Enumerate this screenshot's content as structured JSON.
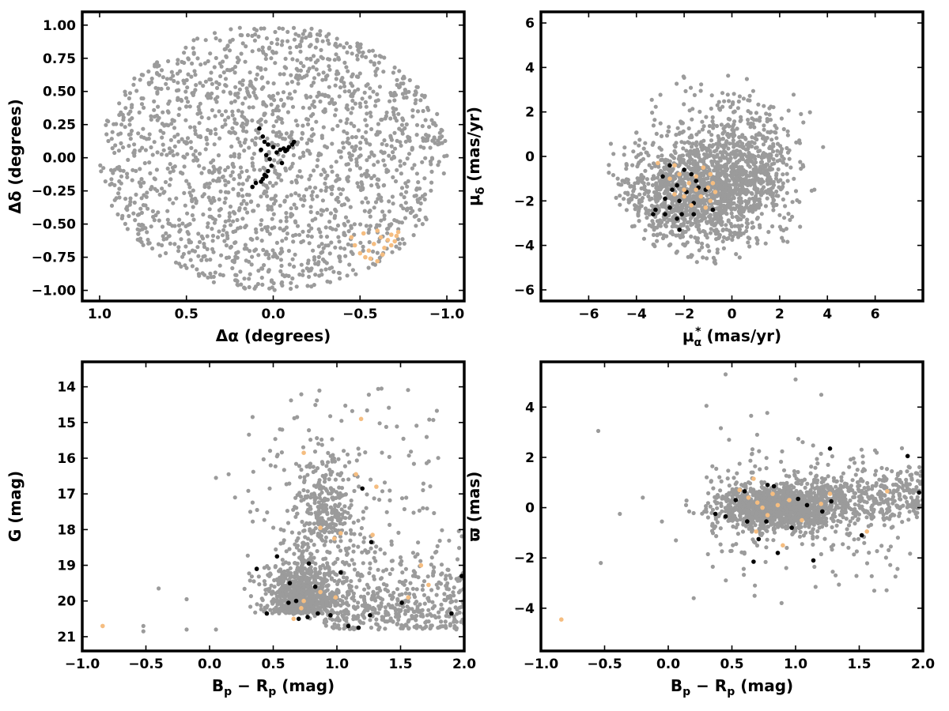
{
  "colors": {
    "field_stars": "#9b9b9b",
    "group_black": "#000000",
    "group_orange": "#f5bd80",
    "frame": "#000000"
  },
  "chart_data": [
    {
      "type": "scatter",
      "id": "sky",
      "xlabel": "Δα (degrees)",
      "ylabel": "Δδ (degrees)",
      "xlim": [
        1.1,
        -1.1
      ],
      "ylim": [
        -1.08,
        1.1
      ],
      "x_inverted": true,
      "xticks": [
        1.0,
        0.5,
        0.0,
        -0.5,
        -1.0
      ],
      "xtick_labels": [
        "1.0",
        "0.5",
        "0.0",
        "−0.5",
        "−1.0"
      ],
      "yticks": [
        -1.0,
        -0.75,
        -0.5,
        -0.25,
        0.0,
        0.25,
        0.5,
        0.75,
        1.0
      ],
      "ytick_labels": [
        "−1.00",
        "−0.75",
        "−0.50",
        "−0.25",
        "0.00",
        "0.25",
        "0.50",
        "0.75",
        "1.00"
      ],
      "grid": false,
      "field": {
        "shape": "disc",
        "center": [
          0.0,
          0.0
        ],
        "radius": 1.0,
        "count": 1800
      },
      "series": [
        {
          "color_key": "group_black",
          "points": [
            [
              0.08,
              0.22
            ],
            [
              0.06,
              0.16
            ],
            [
              0.05,
              0.12
            ],
            [
              0.03,
              0.1
            ],
            [
              0.07,
              0.06
            ],
            [
              0.04,
              0.02
            ],
            [
              0.02,
              -0.01
            ],
            [
              0.01,
              -0.06
            ],
            [
              0.03,
              -0.1
            ],
            [
              0.05,
              -0.13
            ],
            [
              0.06,
              -0.16
            ],
            [
              0.07,
              -0.18
            ],
            [
              0.1,
              -0.19
            ],
            [
              0.12,
              -0.22
            ],
            [
              -0.02,
              0.04
            ],
            [
              -0.04,
              0.06
            ],
            [
              -0.06,
              0.07
            ],
            [
              -0.07,
              0.05
            ],
            [
              -0.09,
              0.08
            ],
            [
              -0.11,
              0.1
            ],
            [
              -0.12,
              0.12
            ],
            [
              -0.05,
              -0.04
            ],
            [
              0.0,
              0.08
            ],
            [
              -0.08,
              0.06
            ],
            [
              0.04,
              -0.14
            ]
          ]
        },
        {
          "color_key": "group_orange",
          "points": [
            [
              -0.45,
              -0.6
            ],
            [
              -0.47,
              -0.66
            ],
            [
              -0.5,
              -0.72
            ],
            [
              -0.53,
              -0.75
            ],
            [
              -0.55,
              -0.7
            ],
            [
              -0.58,
              -0.65
            ],
            [
              -0.6,
              -0.55
            ],
            [
              -0.62,
              -0.6
            ],
            [
              -0.64,
              -0.68
            ],
            [
              -0.66,
              -0.62
            ],
            [
              -0.68,
              -0.58
            ],
            [
              -0.7,
              -0.63
            ],
            [
              -0.72,
              -0.56
            ],
            [
              -0.6,
              -0.78
            ],
            [
              -0.56,
              -0.76
            ],
            [
              -0.63,
              -0.73
            ],
            [
              -0.68,
              -0.66
            ],
            [
              -0.71,
              -0.59
            ],
            [
              -0.52,
              -0.57
            ]
          ]
        }
      ]
    },
    {
      "type": "scatter",
      "id": "proper-motion",
      "xlabel": "μα* (mas/yr)",
      "ylabel": "μδ (mas/yr)",
      "xlim": [
        -8.0,
        8.0
      ],
      "ylim": [
        -6.5,
        6.5
      ],
      "xticks": [
        -6,
        -4,
        -2,
        0,
        2,
        4,
        6
      ],
      "xtick_labels": [
        "−6",
        "−4",
        "−2",
        "0",
        "2",
        "4",
        "6"
      ],
      "yticks": [
        -6,
        -4,
        -2,
        0,
        2,
        4,
        6
      ],
      "ytick_labels": [
        "−6",
        "−4",
        "−2",
        "0",
        "2",
        "4",
        "6"
      ],
      "grid": false,
      "field": {
        "shape": "cloud",
        "main_center": [
          -1.5,
          -1.8
        ],
        "main_spread": [
          1.6,
          1.2
        ],
        "secondary_center": [
          0.4,
          -0.6
        ],
        "secondary_spread": [
          1.2,
          1.3
        ],
        "count": 1800
      },
      "series": [
        {
          "color_key": "group_black",
          "points": [
            [
              -2.6,
              -0.4
            ],
            [
              -2.0,
              -0.6
            ],
            [
              -1.7,
              -0.8
            ],
            [
              -2.9,
              -0.9
            ],
            [
              -1.5,
              -1.1
            ],
            [
              -2.3,
              -1.3
            ],
            [
              -1.4,
              -1.4
            ],
            [
              -2.5,
              -1.5
            ],
            [
              -1.9,
              -1.6
            ],
            [
              -1.1,
              -1.5
            ],
            [
              -2.8,
              -1.9
            ],
            [
              -2.2,
              -2.0
            ],
            [
              -1.6,
              -2.1
            ],
            [
              -2.6,
              -2.3
            ],
            [
              -3.2,
              -2.4
            ],
            [
              -2.1,
              -2.6
            ],
            [
              -1.6,
              -2.6
            ],
            [
              -0.8,
              -2.4
            ],
            [
              -2.8,
              -2.6
            ],
            [
              -2.3,
              -2.8
            ],
            [
              -2.2,
              -3.3
            ],
            [
              -3.3,
              -2.6
            ]
          ]
        },
        {
          "color_key": "group_orange",
          "points": [
            [
              -3.1,
              -0.3
            ],
            [
              -2.4,
              -0.4
            ],
            [
              -2.2,
              -0.8
            ],
            [
              -1.2,
              -0.5
            ],
            [
              -0.9,
              -0.8
            ],
            [
              -1.5,
              -0.9
            ],
            [
              -2.6,
              -1.0
            ],
            [
              -0.8,
              -1.2
            ],
            [
              -1.0,
              -1.4
            ],
            [
              -1.8,
              -1.2
            ],
            [
              -0.7,
              -1.6
            ],
            [
              -2.0,
              -1.5
            ],
            [
              -1.3,
              -1.8
            ],
            [
              -2.4,
              -1.7
            ],
            [
              -0.9,
              -2.0
            ],
            [
              -1.7,
              -2.2
            ],
            [
              -1.1,
              -2.3
            ],
            [
              -2.0,
              -1.8
            ],
            [
              -1.5,
              -1.5
            ]
          ]
        }
      ]
    },
    {
      "type": "scatter",
      "id": "cmd",
      "xlabel": "Bp − Rp (mag)",
      "ylabel": "G (mag)",
      "xlim": [
        -1.0,
        2.0
      ],
      "ylim": [
        21.4,
        13.3
      ],
      "y_inverted": true,
      "xticks": [
        -1.0,
        -0.5,
        0.0,
        0.5,
        1.0,
        1.5,
        2.0
      ],
      "xtick_labels": [
        "−1.0",
        "−0.5",
        "0.0",
        "0.5",
        "1.0",
        "1.5",
        "2.0"
      ],
      "yticks": [
        14,
        15,
        16,
        17,
        18,
        19,
        20,
        21
      ],
      "ytick_labels": [
        "14",
        "15",
        "16",
        "17",
        "18",
        "19",
        "20",
        "21"
      ],
      "grid": false,
      "field": {
        "shape": "cmd",
        "count": 1700
      },
      "series": [
        {
          "color_key": "group_black",
          "points": [
            [
              0.45,
              20.35
            ],
            [
              0.62,
              20.05
            ],
            [
              0.68,
              20.0
            ],
            [
              0.7,
              20.5
            ],
            [
              0.77,
              20.45
            ],
            [
              0.85,
              20.35
            ],
            [
              0.95,
              20.4
            ],
            [
              0.83,
              19.6
            ],
            [
              0.63,
              19.5
            ],
            [
              0.78,
              18.95
            ],
            [
              0.37,
              19.1
            ],
            [
              0.53,
              18.75
            ],
            [
              1.03,
              19.2
            ],
            [
              1.09,
              20.7
            ],
            [
              1.17,
              20.75
            ],
            [
              1.26,
              20.4
            ],
            [
              1.51,
              20.05
            ],
            [
              1.9,
              20.35
            ],
            [
              1.98,
              19.3
            ],
            [
              1.27,
              18.35
            ],
            [
              1.2,
              16.85
            ]
          ]
        },
        {
          "color_key": "group_orange",
          "points": [
            [
              -0.84,
              20.7
            ],
            [
              0.66,
              20.5
            ],
            [
              0.72,
              20.2
            ],
            [
              0.74,
              20.0
            ],
            [
              0.87,
              19.75
            ],
            [
              0.99,
              19.9
            ],
            [
              0.87,
              17.95
            ],
            [
              0.98,
              18.25
            ],
            [
              1.03,
              18.1
            ],
            [
              1.28,
              18.15
            ],
            [
              0.74,
              15.85
            ],
            [
              1.15,
              16.45
            ],
            [
              1.19,
              14.9
            ],
            [
              1.31,
              16.8
            ],
            [
              1.66,
              19.0
            ],
            [
              1.72,
              19.55
            ],
            [
              1.56,
              19.9
            ]
          ]
        }
      ]
    },
    {
      "type": "scatter",
      "id": "parallax",
      "xlabel": "Bp − Rp (mag)",
      "ylabel": "ϖ (mas)",
      "xlim": [
        -1.0,
        2.0
      ],
      "ylim": [
        -5.7,
        5.8
      ],
      "xticks": [
        -1.0,
        -0.5,
        0.0,
        0.5,
        1.0,
        1.5,
        2.0
      ],
      "xtick_labels": [
        "−1.0",
        "−0.5",
        "0.0",
        "0.5",
        "1.0",
        "1.5",
        "2.0"
      ],
      "yticks": [
        -4,
        -2,
        0,
        2,
        4
      ],
      "ytick_labels": [
        "−4",
        "−2",
        "0",
        "2",
        "4"
      ],
      "grid": false,
      "field": {
        "shape": "band",
        "center": [
          0.85,
          0.0
        ],
        "count": 1800
      },
      "series": [
        {
          "color_key": "group_black",
          "points": [
            [
              0.37,
              -0.25
            ],
            [
              0.45,
              -0.35
            ],
            [
              0.53,
              0.3
            ],
            [
              0.6,
              0.65
            ],
            [
              0.62,
              -0.55
            ],
            [
              0.67,
              -2.15
            ],
            [
              0.71,
              -1.25
            ],
            [
              0.78,
              0.9
            ],
            [
              0.77,
              -0.55
            ],
            [
              0.83,
              0.85
            ],
            [
              0.86,
              -1.8
            ],
            [
              0.97,
              -0.8
            ],
            [
              1.02,
              0.35
            ],
            [
              1.09,
              0.1
            ],
            [
              1.14,
              -2.1
            ],
            [
              1.21,
              -0.15
            ],
            [
              1.27,
              2.35
            ],
            [
              1.28,
              0.25
            ],
            [
              1.52,
              -1.1
            ],
            [
              1.88,
              2.05
            ],
            [
              1.97,
              0.6
            ]
          ]
        },
        {
          "color_key": "group_orange",
          "points": [
            [
              -0.84,
              -4.45
            ],
            [
              0.56,
              0.7
            ],
            [
              0.63,
              0.4
            ],
            [
              0.67,
              1.15
            ],
            [
              0.7,
              0.2
            ],
            [
              0.74,
              0.0
            ],
            [
              0.78,
              -0.3
            ],
            [
              0.82,
              0.55
            ],
            [
              0.86,
              0.1
            ],
            [
              0.9,
              -1.5
            ],
            [
              0.95,
              0.3
            ],
            [
              1.05,
              -0.5
            ],
            [
              1.2,
              0.15
            ],
            [
              1.27,
              0.55
            ],
            [
              1.56,
              -0.95
            ],
            [
              1.72,
              0.65
            ],
            [
              0.69,
              -0.95
            ]
          ]
        }
      ]
    }
  ]
}
